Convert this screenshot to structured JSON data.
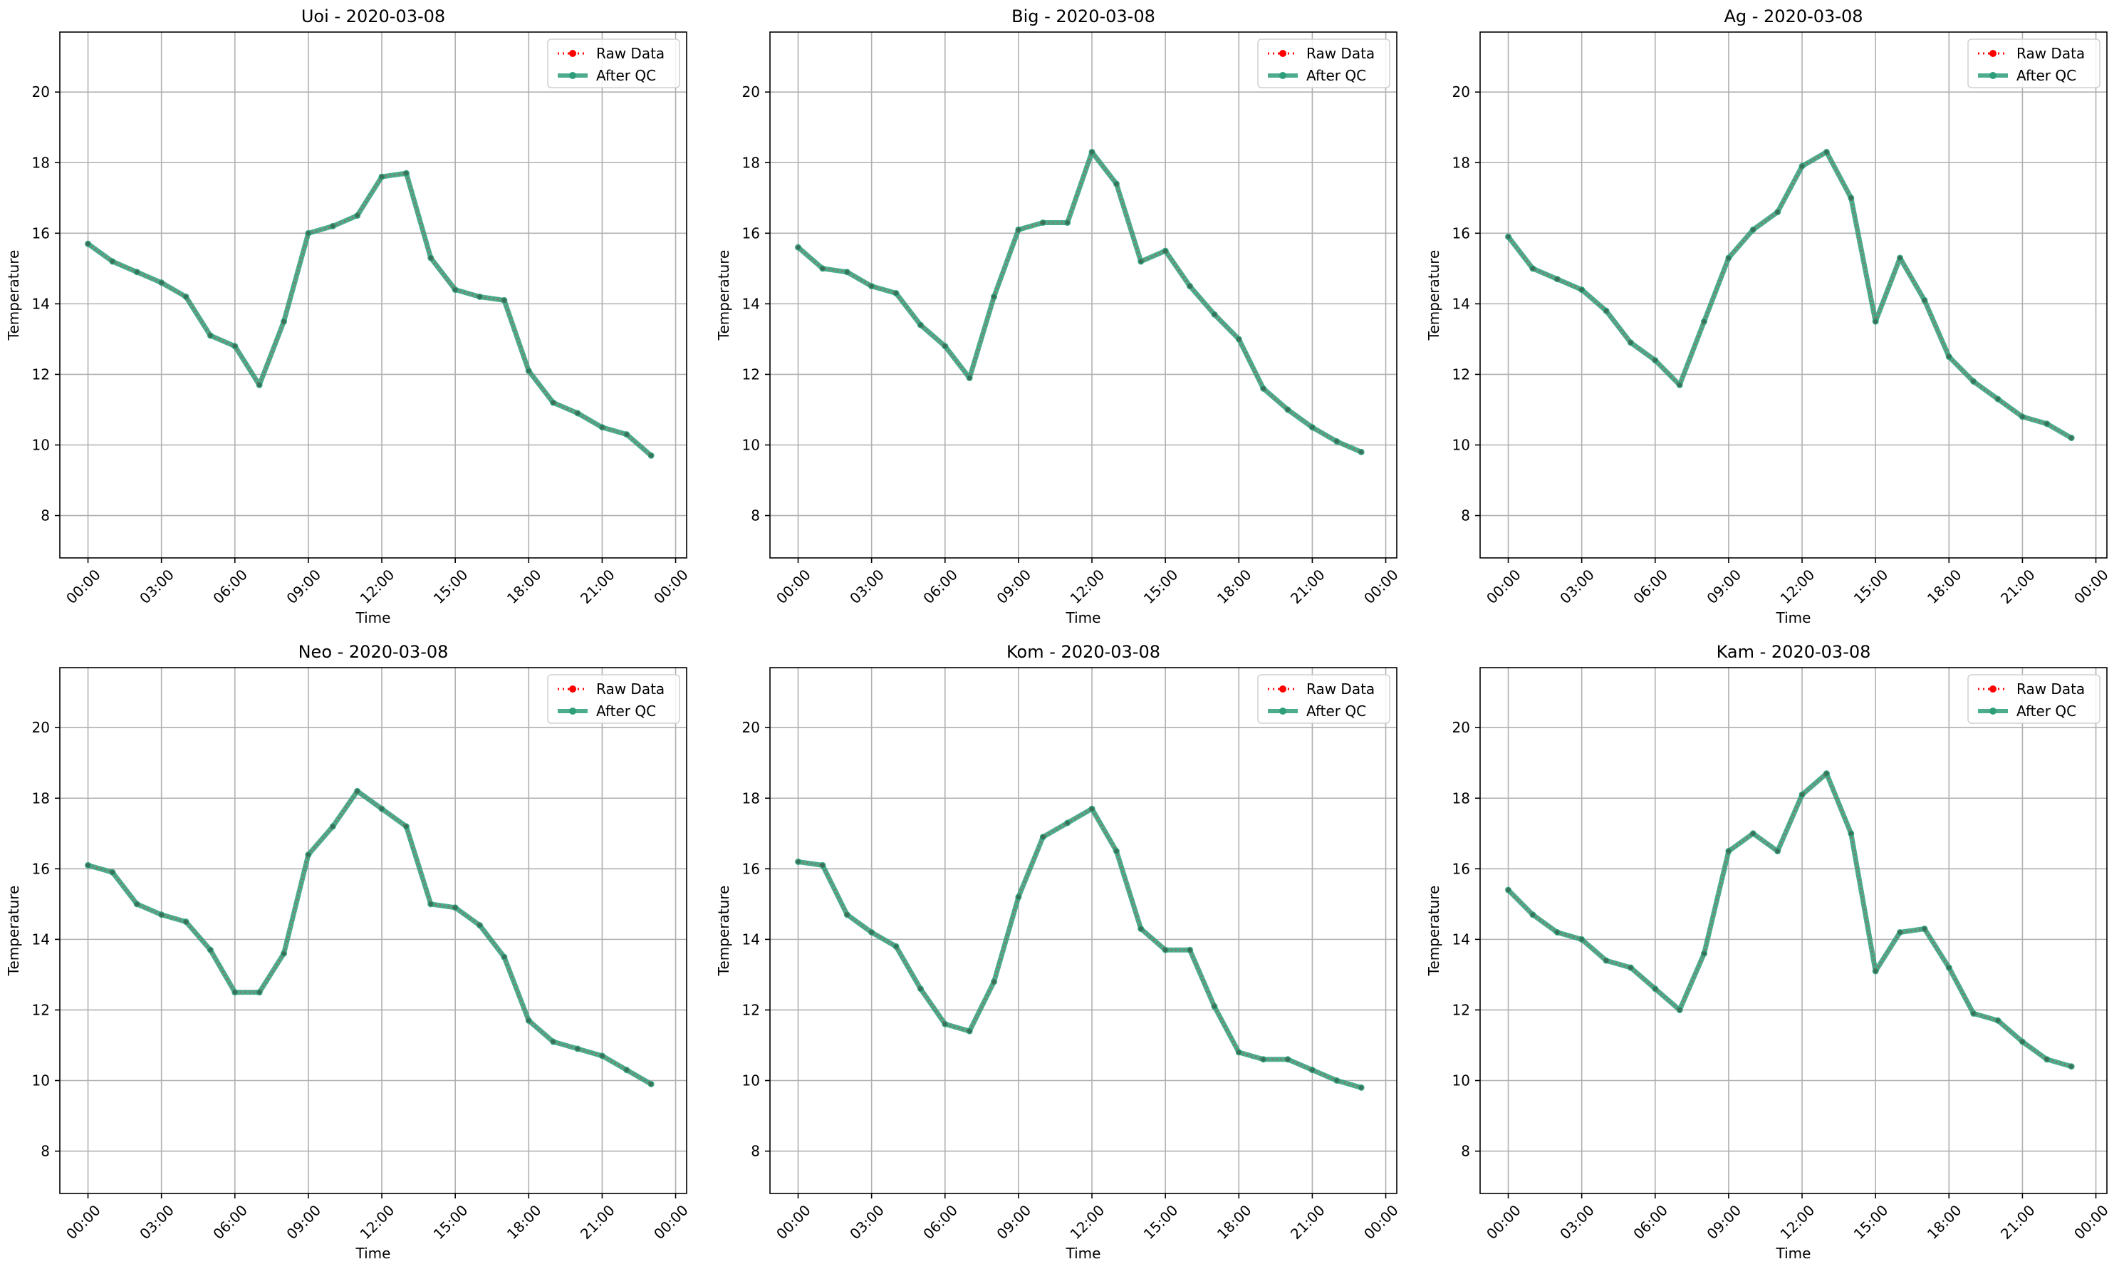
{
  "chart_data": [
    {
      "type": "line",
      "title": "Uoi - 2020-03-08",
      "xlabel": "Time",
      "ylabel": "Temperature",
      "xticks": [
        "00:00",
        "03:00",
        "06:00",
        "09:00",
        "12:00",
        "15:00",
        "18:00",
        "21:00",
        "00:00"
      ],
      "yticks": [
        "8",
        "10",
        "12",
        "14",
        "16",
        "18",
        "20"
      ],
      "ylim": [
        6.8,
        21.7
      ],
      "grid": true,
      "legend_position": "top-right",
      "x_hours": [
        0,
        1,
        2,
        3,
        4,
        5,
        6,
        7,
        8,
        9,
        10,
        11,
        12,
        13,
        14,
        15,
        16,
        17,
        18,
        19,
        20,
        21,
        22,
        23
      ],
      "series": [
        {
          "name": "Raw Data",
          "color": "#ff0000",
          "values": [
            15.7,
            15.2,
            14.9,
            14.6,
            14.2,
            13.1,
            12.8,
            11.7,
            13.5,
            16.0,
            16.2,
            16.5,
            17.6,
            17.7,
            15.3,
            14.4,
            14.2,
            14.1,
            12.1,
            11.2,
            10.9,
            10.5,
            10.3,
            9.7
          ]
        },
        {
          "name": "After QC",
          "color": "#2e9e7a",
          "values": [
            15.7,
            15.2,
            14.9,
            14.6,
            14.2,
            13.1,
            12.8,
            11.7,
            13.5,
            16.0,
            16.2,
            16.5,
            17.6,
            17.7,
            15.3,
            14.4,
            14.2,
            14.1,
            12.1,
            11.2,
            10.9,
            10.5,
            10.3,
            9.7
          ]
        }
      ]
    },
    {
      "type": "line",
      "title": "Big - 2020-03-08",
      "xlabel": "Time",
      "ylabel": "Temperature",
      "xticks": [
        "00:00",
        "03:00",
        "06:00",
        "09:00",
        "12:00",
        "15:00",
        "18:00",
        "21:00",
        "00:00"
      ],
      "yticks": [
        "8",
        "10",
        "12",
        "14",
        "16",
        "18",
        "20"
      ],
      "ylim": [
        6.8,
        21.7
      ],
      "grid": true,
      "legend_position": "top-right",
      "x_hours": [
        0,
        1,
        2,
        3,
        4,
        5,
        6,
        7,
        8,
        9,
        10,
        11,
        12,
        13,
        14,
        15,
        16,
        17,
        18,
        19,
        20,
        21,
        22,
        23
      ],
      "series": [
        {
          "name": "Raw Data",
          "color": "#ff0000",
          "values": [
            15.6,
            15.0,
            14.9,
            14.5,
            14.3,
            13.4,
            12.8,
            11.9,
            14.2,
            16.1,
            16.3,
            16.3,
            18.3,
            17.4,
            15.2,
            15.5,
            14.5,
            13.7,
            13.0,
            11.6,
            11.0,
            10.5,
            10.1,
            9.8
          ]
        },
        {
          "name": "After QC",
          "color": "#2e9e7a",
          "values": [
            15.6,
            15.0,
            14.9,
            14.5,
            14.3,
            13.4,
            12.8,
            11.9,
            14.2,
            16.1,
            16.3,
            16.3,
            18.3,
            17.4,
            15.2,
            15.5,
            14.5,
            13.7,
            13.0,
            11.6,
            11.0,
            10.5,
            10.1,
            9.8
          ]
        }
      ]
    },
    {
      "type": "line",
      "title": "Ag - 2020-03-08",
      "xlabel": "Time",
      "ylabel": "Temperature",
      "xticks": [
        "00:00",
        "03:00",
        "06:00",
        "09:00",
        "12:00",
        "15:00",
        "18:00",
        "21:00",
        "00:00"
      ],
      "yticks": [
        "8",
        "10",
        "12",
        "14",
        "16",
        "18",
        "20"
      ],
      "ylim": [
        6.8,
        21.7
      ],
      "grid": true,
      "legend_position": "top-right",
      "x_hours": [
        0,
        1,
        2,
        3,
        4,
        5,
        6,
        7,
        8,
        9,
        10,
        11,
        12,
        13,
        14,
        15,
        16,
        17,
        18,
        19,
        20,
        21,
        22,
        23
      ],
      "series": [
        {
          "name": "Raw Data",
          "color": "#ff0000",
          "values": [
            15.9,
            15.0,
            14.7,
            14.4,
            13.8,
            12.9,
            12.4,
            11.7,
            13.5,
            15.3,
            16.1,
            16.6,
            17.9,
            18.3,
            17.0,
            13.5,
            15.3,
            14.1,
            12.5,
            11.8,
            11.3,
            10.8,
            10.6,
            10.2
          ]
        },
        {
          "name": "After QC",
          "color": "#2e9e7a",
          "values": [
            15.9,
            15.0,
            14.7,
            14.4,
            13.8,
            12.9,
            12.4,
            11.7,
            13.5,
            15.3,
            16.1,
            16.6,
            17.9,
            18.3,
            17.0,
            13.5,
            15.3,
            14.1,
            12.5,
            11.8,
            11.3,
            10.8,
            10.6,
            10.2
          ]
        }
      ]
    },
    {
      "type": "line",
      "title": "Neo - 2020-03-08",
      "xlabel": "Time",
      "ylabel": "Temperature",
      "xticks": [
        "00:00",
        "03:00",
        "06:00",
        "09:00",
        "12:00",
        "15:00",
        "18:00",
        "21:00",
        "00:00"
      ],
      "yticks": [
        "8",
        "10",
        "12",
        "14",
        "16",
        "18",
        "20"
      ],
      "ylim": [
        6.8,
        21.7
      ],
      "grid": true,
      "legend_position": "top-right",
      "x_hours": [
        0,
        1,
        2,
        3,
        4,
        5,
        6,
        7,
        8,
        9,
        10,
        11,
        12,
        13,
        14,
        15,
        16,
        17,
        18,
        19,
        20,
        21,
        22,
        23
      ],
      "series": [
        {
          "name": "Raw Data",
          "color": "#ff0000",
          "values": [
            16.1,
            15.9,
            15.0,
            14.7,
            14.5,
            13.7,
            12.5,
            12.5,
            13.6,
            16.4,
            17.2,
            18.2,
            17.7,
            17.2,
            15.0,
            14.9,
            14.4,
            13.5,
            11.7,
            11.1,
            10.9,
            10.7,
            10.3,
            9.9
          ]
        },
        {
          "name": "After QC",
          "color": "#2e9e7a",
          "values": [
            16.1,
            15.9,
            15.0,
            14.7,
            14.5,
            13.7,
            12.5,
            12.5,
            13.6,
            16.4,
            17.2,
            18.2,
            17.7,
            17.2,
            15.0,
            14.9,
            14.4,
            13.5,
            11.7,
            11.1,
            10.9,
            10.7,
            10.3,
            9.9
          ]
        }
      ]
    },
    {
      "type": "line",
      "title": "Kom - 2020-03-08",
      "xlabel": "Time",
      "ylabel": "Temperature",
      "xticks": [
        "00:00",
        "03:00",
        "06:00",
        "09:00",
        "12:00",
        "15:00",
        "18:00",
        "21:00",
        "00:00"
      ],
      "yticks": [
        "8",
        "10",
        "12",
        "14",
        "16",
        "18",
        "20"
      ],
      "ylim": [
        6.8,
        21.7
      ],
      "grid": true,
      "legend_position": "top-right",
      "x_hours": [
        0,
        1,
        2,
        3,
        4,
        5,
        6,
        7,
        8,
        9,
        10,
        11,
        12,
        13,
        14,
        15,
        16,
        17,
        18,
        19,
        20,
        21,
        22,
        23
      ],
      "series": [
        {
          "name": "Raw Data",
          "color": "#ff0000",
          "values": [
            16.2,
            16.1,
            14.7,
            14.2,
            13.8,
            12.6,
            11.6,
            11.4,
            12.8,
            15.2,
            16.9,
            17.3,
            17.7,
            16.5,
            14.3,
            13.7,
            13.7,
            12.1,
            10.8,
            10.6,
            10.6,
            10.3,
            10.0,
            9.8
          ]
        },
        {
          "name": "After QC",
          "color": "#2e9e7a",
          "values": [
            16.2,
            16.1,
            14.7,
            14.2,
            13.8,
            12.6,
            11.6,
            11.4,
            12.8,
            15.2,
            16.9,
            17.3,
            17.7,
            16.5,
            14.3,
            13.7,
            13.7,
            12.1,
            10.8,
            10.6,
            10.6,
            10.3,
            10.0,
            9.8
          ]
        }
      ]
    },
    {
      "type": "line",
      "title": "Kam - 2020-03-08",
      "xlabel": "Time",
      "ylabel": "Temperature",
      "xticks": [
        "00:00",
        "03:00",
        "06:00",
        "09:00",
        "12:00",
        "15:00",
        "18:00",
        "21:00",
        "00:00"
      ],
      "yticks": [
        "8",
        "10",
        "12",
        "14",
        "16",
        "18",
        "20"
      ],
      "ylim": [
        6.8,
        21.7
      ],
      "grid": true,
      "legend_position": "top-right",
      "x_hours": [
        0,
        1,
        2,
        3,
        4,
        5,
        6,
        7,
        8,
        9,
        10,
        11,
        12,
        13,
        14,
        15,
        16,
        17,
        18,
        19,
        20,
        21,
        22,
        23
      ],
      "series": [
        {
          "name": "Raw Data",
          "color": "#ff0000",
          "values": [
            15.4,
            14.7,
            14.2,
            14.0,
            13.4,
            13.2,
            12.6,
            12.0,
            13.6,
            16.5,
            17.0,
            16.5,
            18.1,
            18.7,
            17.0,
            13.1,
            14.2,
            14.3,
            13.2,
            11.9,
            11.7,
            11.1,
            10.6,
            10.4
          ]
        },
        {
          "name": "After QC",
          "color": "#2e9e7a",
          "values": [
            15.4,
            14.7,
            14.2,
            14.0,
            13.4,
            13.2,
            12.6,
            12.0,
            13.6,
            16.5,
            17.0,
            16.5,
            18.1,
            18.7,
            17.0,
            13.1,
            14.2,
            14.3,
            13.2,
            11.9,
            11.7,
            11.1,
            10.6,
            10.4
          ]
        }
      ]
    }
  ]
}
